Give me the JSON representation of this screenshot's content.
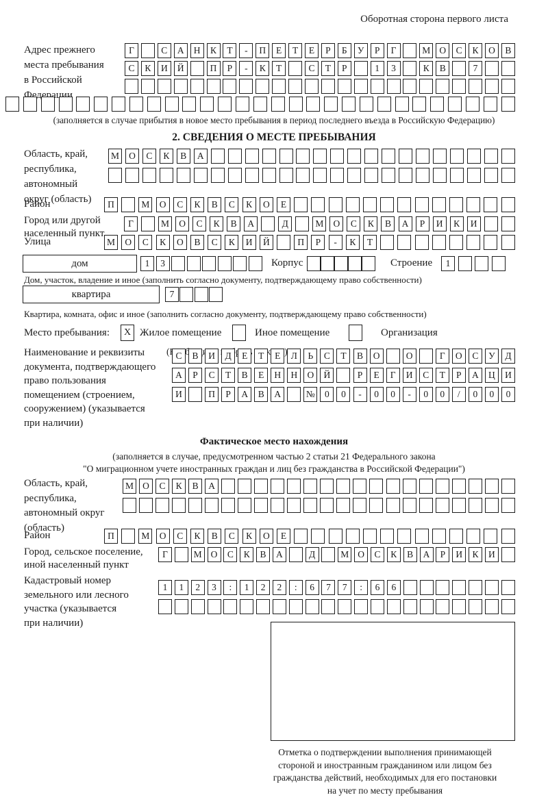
{
  "theme": {
    "ink": "#1c1c1c",
    "bg": "#ffffff"
  },
  "header": {
    "back_note": "Оборотная сторона первого листа"
  },
  "prev_address": {
    "label": "Адрес прежнего\nместа пребывания\nв Российской\nФедерации",
    "rows": [
      {
        "text": "Г САНКТ-ПЕТЕРБУРГ МОСКОВ",
        "count": 24
      },
      {
        "text": "СКИЙ ПР-КТ СТР 13 КВ 7",
        "count": 24
      },
      {
        "text": "",
        "count": 24
      },
      {
        "text": "",
        "count": 29
      }
    ],
    "note": "(заполняется в случае прибытия в новое место пребывания в период последнего въезда в Российскую Федерацию)"
  },
  "section2": {
    "title": "2. СВЕДЕНИЯ О МЕСТЕ ПРЕБЫВАНИЯ",
    "region": {
      "label": "Область, край,\nреспублика,\nавтономный\nокруг (область)",
      "rows": [
        {
          "text": "МОСКВА",
          "count": 24
        },
        {
          "text": "",
          "count": 24
        }
      ]
    },
    "district": {
      "label": "Район",
      "row": {
        "text": "П МОСКВСКОЕ",
        "count": 24
      }
    },
    "city": {
      "label": "Город или другой\nнаселенный пункт",
      "row": {
        "text": "Г МОСКВА Д МОСКВАРИКИ",
        "count": 23
      }
    },
    "street": {
      "label": "Улица",
      "row": {
        "text": "МОСКОВСКИЙ ПР-КТ",
        "count": 24
      }
    },
    "house": {
      "box_label": "дом",
      "cells": {
        "text": "13",
        "count": 8
      },
      "korpus_label": "Корпус",
      "korpus_cells": {
        "text": "",
        "count": 5
      },
      "stroenie_label": "Строение",
      "stroenie_cells": {
        "text": "1",
        "count": 4
      },
      "caption": "Дом, участок, владение и иное (заполнить согласно документу, подтверждающему право собственности)"
    },
    "apartment": {
      "box_label": "квартира",
      "cells": {
        "text": "7",
        "count": 4
      },
      "caption": "Квартира, комната, офис и иное (заполнить согласно документу, подтверждающему право собственности)"
    },
    "stay": {
      "label": "Место пребывания:",
      "mark": "X",
      "opt1": "Жилое помещение",
      "opt2": "Иное помещение",
      "opt3": "Организация",
      "note": "(Необходимо выбрать нужное)"
    },
    "doc": {
      "label": "Наименование и реквизиты\nдокумента, подтверждающего\nправо пользования\nпомещением (строением,\nсооружением) (указывается\nпри наличии)",
      "rows": [
        {
          "text": "СВИДЕТЕЛЬСТВО О ГОСУД",
          "count": 21
        },
        {
          "text": "АРСТВЕННОЙ РЕГИСТРАЦИ",
          "count": 21
        },
        {
          "text": "И ПРАВА №00-00-00/000",
          "count": 21
        }
      ]
    }
  },
  "actual_location": {
    "title": "Фактическое место нахождения",
    "note1": "(заполняется в случае, предусмотренном частью 2 статьи 21 Федерального закона",
    "note2": "\"О миграционном учете иностранных граждан и лиц без гражданства в Российской Федерации\")",
    "region": {
      "label": "Область, край,\nреспублика,\nавтономный округ\n(область)",
      "rows": [
        {
          "text": "МОСКВА",
          "count": 24
        },
        {
          "text": "",
          "count": 24
        }
      ]
    },
    "district": {
      "label": "Район",
      "row": {
        "text": "П МОСКВСКОЕ",
        "count": 24
      }
    },
    "city": {
      "label": "Город, сельское поселение,\nиной населенный пункт",
      "row": {
        "text": "Г МОСКВА Д МОСКВАРИКИ",
        "count": 22
      }
    },
    "cadastre": {
      "label": "Кадастровый номер\nземельного или лесного\nучастка (указывается\nпри наличии)",
      "rows": [
        {
          "text": "1123:122:677:66",
          "count": 22
        },
        {
          "text": "",
          "count": 22
        }
      ]
    },
    "stamp_caption": "Отметка о подтверждении выполнения принимающей\nстороной и иностранным гражданином или лицом без\nгражданства действий, необходимых для его постановки\nна учет по месту пребывания"
  }
}
